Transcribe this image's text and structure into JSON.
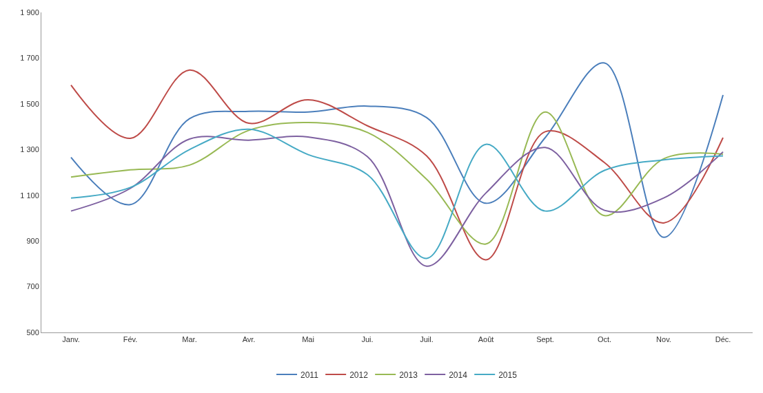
{
  "chart_data": {
    "type": "line",
    "categories": [
      "Janv.",
      "Fév.",
      "Mar.",
      "Avr.",
      "Mai",
      "Jui.",
      "Juil.",
      "Août",
      "Sept.",
      "Oct.",
      "Nov.",
      "Déc."
    ],
    "ylim": [
      500,
      1900
    ],
    "yticks": [
      {
        "value": 500,
        "label": "500"
      },
      {
        "value": 700,
        "label": "700"
      },
      {
        "value": 900,
        "label": "900"
      },
      {
        "value": 1100,
        "label": "1 100"
      },
      {
        "value": 1300,
        "label": "1 300"
      },
      {
        "value": 1500,
        "label": "1 500"
      },
      {
        "value": 1700,
        "label": "1 700"
      },
      {
        "value": 1900,
        "label": "1 900"
      }
    ],
    "grid": false,
    "legend": "bottom",
    "marker": "none",
    "line_style": "solid",
    "series": [
      {
        "name": "2011",
        "color": "#4a7ebb",
        "values": [
          1266,
          1059,
          1435,
          1467,
          1464,
          1490,
          1440,
          1065,
          1352,
          1679,
          916,
          1539
        ]
      },
      {
        "name": "2012",
        "color": "#be4b48",
        "values": [
          1582,
          1349,
          1648,
          1415,
          1518,
          1404,
          1272,
          818,
          1378,
          1243,
          979,
          1352
        ]
      },
      {
        "name": "2013",
        "color": "#98b954",
        "values": [
          1180,
          1211,
          1232,
          1384,
          1418,
          1375,
          1170,
          887,
          1464,
          1011,
          1260,
          1280
        ]
      },
      {
        "name": "2014",
        "color": "#7d60a0",
        "values": [
          1031,
          1130,
          1346,
          1341,
          1355,
          1269,
          790,
          1110,
          1309,
          1034,
          1088,
          1290
        ]
      },
      {
        "name": "2015",
        "color": "#46aac5",
        "values": [
          1088,
          1134,
          1300,
          1389,
          1278,
          1190,
          824,
          1323,
          1031,
          1209,
          1255,
          1272
        ]
      }
    ]
  }
}
